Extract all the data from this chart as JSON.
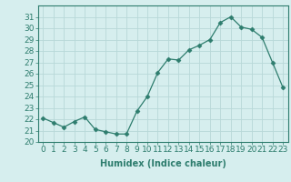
{
  "x": [
    0,
    1,
    2,
    3,
    4,
    5,
    6,
    7,
    8,
    9,
    10,
    11,
    12,
    13,
    14,
    15,
    16,
    17,
    18,
    19,
    20,
    21,
    22,
    23
  ],
  "y": [
    22.1,
    21.7,
    21.3,
    21.8,
    22.2,
    21.1,
    20.9,
    20.7,
    20.7,
    22.7,
    24.0,
    26.1,
    27.3,
    27.2,
    28.1,
    28.5,
    29.0,
    30.5,
    31.0,
    30.1,
    29.9,
    29.2,
    27.0,
    24.8
  ],
  "line_color": "#2e7d6e",
  "marker": "D",
  "marker_size": 2.5,
  "bg_color": "#d6eeee",
  "grid_color": "#b8d8d8",
  "xlabel": "Humidex (Indice chaleur)",
  "ylim": [
    20,
    32
  ],
  "xlim": [
    -0.5,
    23.5
  ],
  "yticks": [
    20,
    21,
    22,
    23,
    24,
    25,
    26,
    27,
    28,
    29,
    30,
    31
  ],
  "xticks": [
    0,
    1,
    2,
    3,
    4,
    5,
    6,
    7,
    8,
    9,
    10,
    11,
    12,
    13,
    14,
    15,
    16,
    17,
    18,
    19,
    20,
    21,
    22,
    23
  ],
  "label_fontsize": 7,
  "tick_fontsize": 6.5
}
